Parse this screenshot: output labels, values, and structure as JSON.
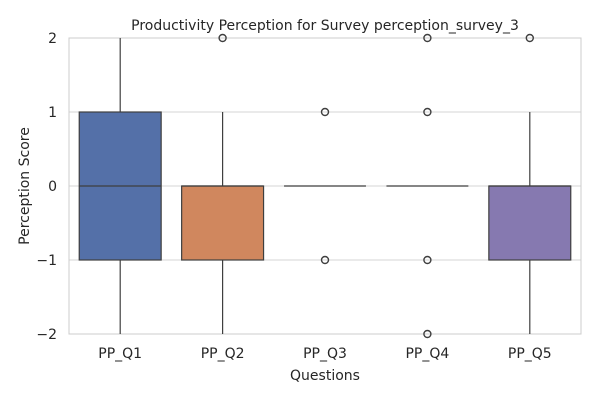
{
  "chart_data": {
    "type": "box",
    "title": "Productivity Perception for Survey perception_survey_3",
    "xlabel": "Questions",
    "ylabel": "Perception Score",
    "ylim": [
      -2,
      2
    ],
    "yticks": [
      -2,
      -1,
      0,
      1,
      2
    ],
    "ytick_labels": [
      "−2",
      "−1",
      "0",
      "1",
      "2"
    ],
    "grid": "horizontal",
    "categories": [
      "PP_Q1",
      "PP_Q2",
      "PP_Q3",
      "PP_Q4",
      "PP_Q5"
    ],
    "boxes": [
      {
        "q1": -1,
        "median": 0,
        "q3": 1,
        "whisker_low": -2,
        "whisker_high": 2,
        "outliers": [],
        "color": "#5470a8"
      },
      {
        "q1": -1,
        "median": 0,
        "q3": 0,
        "whisker_low": -2,
        "whisker_high": 1,
        "outliers": [
          2
        ],
        "color": "#d0875e"
      },
      {
        "q1": 0,
        "median": 0,
        "q3": 0,
        "whisker_low": 0,
        "whisker_high": 0,
        "outliers": [
          -1,
          1
        ],
        "color": "#5b9a5f"
      },
      {
        "q1": 0,
        "median": 0,
        "q3": 0,
        "whisker_low": 0,
        "whisker_high": 0,
        "outliers": [
          -2,
          -1,
          1,
          2
        ],
        "color": "#c05655"
      },
      {
        "q1": -1,
        "median": 0,
        "q3": 0,
        "whisker_low": -2,
        "whisker_high": 1,
        "outliers": [
          2
        ],
        "color": "#8679b0"
      }
    ]
  }
}
